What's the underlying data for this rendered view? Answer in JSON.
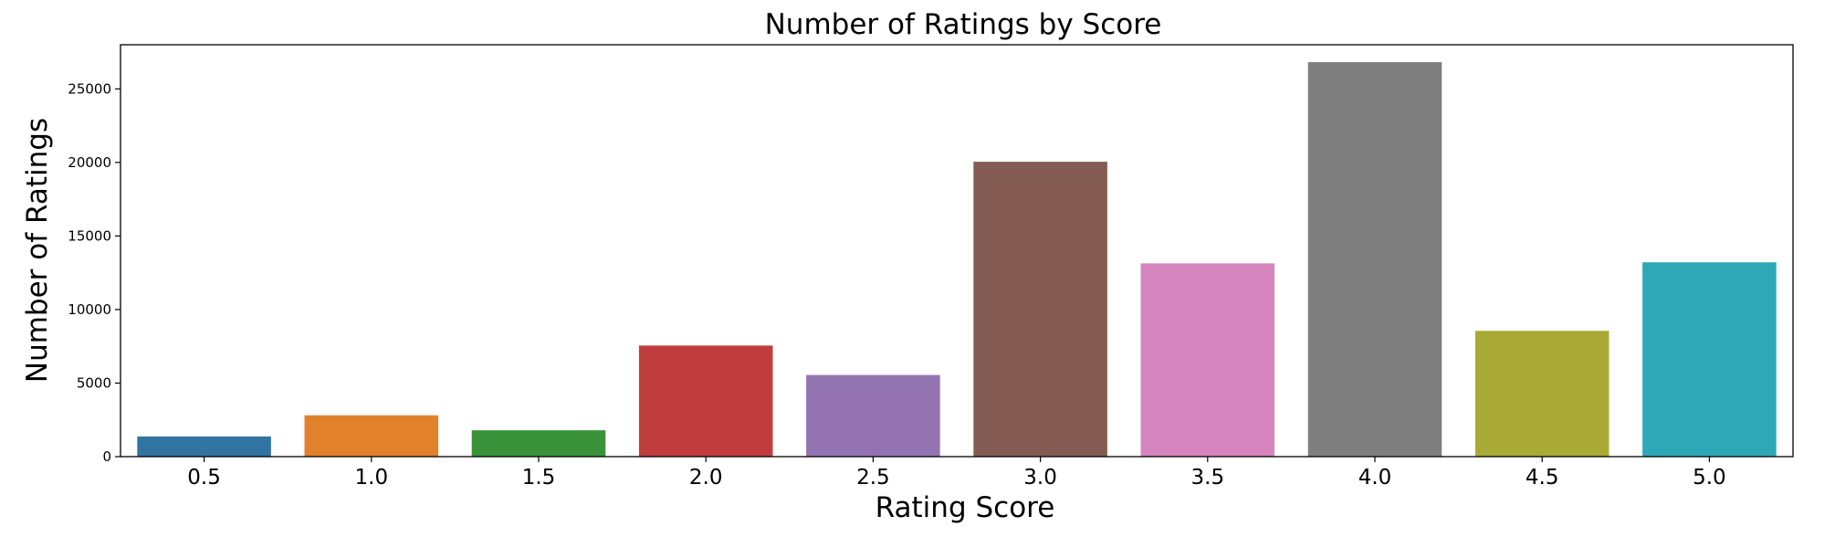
{
  "chart_data": {
    "type": "bar",
    "title": "Number of Ratings by Score",
    "xlabel": "Rating Score",
    "ylabel": "Number of Ratings",
    "categories": [
      "0.5",
      "1.0",
      "1.5",
      "2.0",
      "2.5",
      "3.0",
      "3.5",
      "4.0",
      "4.5",
      "5.0"
    ],
    "values": [
      1370,
      2811,
      1791,
      7551,
      5550,
      20047,
      13136,
      26818,
      8551,
      13211
    ],
    "colors": [
      "#3274a1",
      "#e1812c",
      "#3a923a",
      "#c03d3e",
      "#9372b2",
      "#845b53",
      "#d684bd",
      "#7f7f7f",
      "#a9aa35",
      "#2ea8b6"
    ],
    "ylim": [
      0,
      28000
    ],
    "yticks": [
      0,
      5000,
      10000,
      15000,
      20000,
      25000
    ],
    "grid": false,
    "legend": "none"
  }
}
